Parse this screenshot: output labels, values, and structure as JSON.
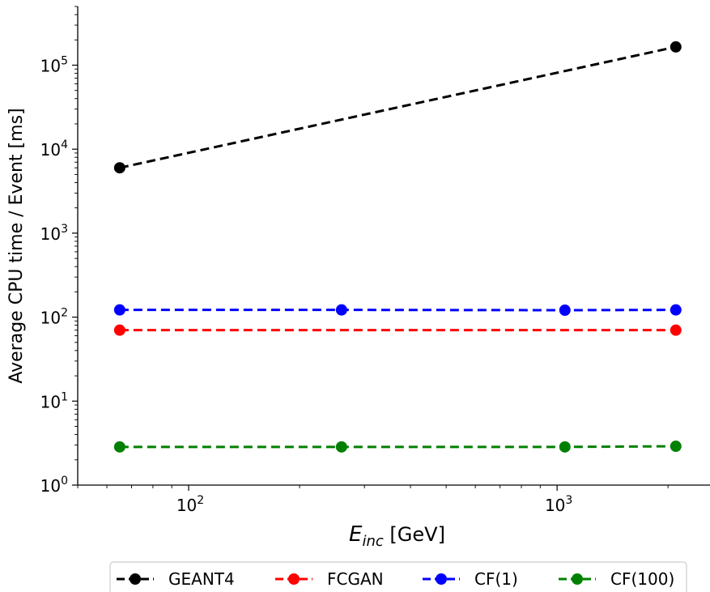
{
  "chart_data": {
    "type": "line",
    "title": "",
    "xlabel_main": "E",
    "xlabel_sub": "inc",
    "xlabel_unit": "[GeV]",
    "ylabel": "Average CPU time / Event [ms]",
    "xscale": "log",
    "yscale": "log",
    "xlim": [
      50,
      2600
    ],
    "ylim": [
      1,
      500000
    ],
    "x_ticks": [
      {
        "value": 100,
        "base": "10",
        "exp": "2"
      },
      {
        "value": 1000,
        "base": "10",
        "exp": "3"
      }
    ],
    "y_ticks": [
      {
        "value": 1,
        "base": "10",
        "exp": "0"
      },
      {
        "value": 10,
        "base": "10",
        "exp": "1"
      },
      {
        "value": 100,
        "base": "10",
        "exp": "2"
      },
      {
        "value": 1000,
        "base": "10",
        "exp": "3"
      },
      {
        "value": 10000,
        "base": "10",
        "exp": "4"
      },
      {
        "value": 100000,
        "base": "10",
        "exp": "5"
      }
    ],
    "grid": false,
    "legend_position": "bottom",
    "series": [
      {
        "name": "GEANT4",
        "color": "#000000",
        "x": [
          65,
          2100
        ],
        "y": [
          6000,
          165000
        ]
      },
      {
        "name": "FCGAN",
        "color": "#ff0000",
        "x": [
          65,
          2100
        ],
        "y": [
          70,
          70
        ]
      },
      {
        "name": "CF(1)",
        "color": "#0000ff",
        "x": [
          65,
          260,
          1050,
          2100
        ],
        "y": [
          122,
          122,
          121,
          122
        ]
      },
      {
        "name": "CF(100)",
        "color": "#008000",
        "x": [
          65,
          260,
          1050,
          2100
        ],
        "y": [
          2.85,
          2.85,
          2.85,
          2.9
        ]
      }
    ]
  }
}
